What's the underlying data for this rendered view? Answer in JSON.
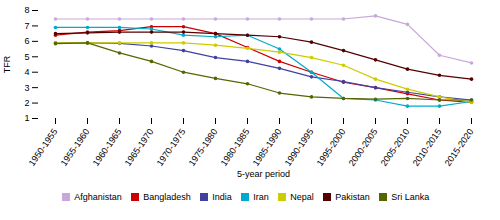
{
  "chart_data": {
    "type": "line",
    "xlabel": "5-year period",
    "ylabel": "TFR",
    "categories": [
      "1950-1955",
      "1955-1960",
      "1960-1965",
      "1965-1970",
      "1970-1975",
      "1975-1980",
      "1980-1985",
      "1985-1990",
      "1990-1995",
      "1995-2000",
      "2000-2005",
      "2005-2010",
      "2010-2015",
      "2015-2020"
    ],
    "series": [
      {
        "name": "Afghanistan",
        "color": "#c8a8d8",
        "values": [
          7.45,
          7.45,
          7.45,
          7.45,
          7.45,
          7.45,
          7.45,
          7.45,
          7.45,
          7.45,
          7.65,
          7.1,
          5.1,
          4.6
        ]
      },
      {
        "name": "Bangladesh",
        "color": "#cc0000",
        "values": [
          6.4,
          6.6,
          6.7,
          6.95,
          6.95,
          6.5,
          5.6,
          4.7,
          4.0,
          3.35,
          3.0,
          2.6,
          2.2,
          2.05
        ]
      },
      {
        "name": "India",
        "color": "#4040a0",
        "values": [
          5.9,
          5.9,
          5.87,
          5.7,
          5.4,
          4.95,
          4.7,
          4.25,
          3.7,
          3.4,
          3.0,
          2.7,
          2.4,
          2.2
        ]
      },
      {
        "name": "Iran",
        "color": "#00aacc",
        "values": [
          6.9,
          6.9,
          6.9,
          6.8,
          6.4,
          6.3,
          6.4,
          5.5,
          4.0,
          2.3,
          2.2,
          1.8,
          1.8,
          2.1
        ]
      },
      {
        "name": "Nepal",
        "color": "#cccc00",
        "values": [
          5.9,
          5.9,
          5.9,
          5.9,
          5.9,
          5.75,
          5.55,
          5.3,
          4.95,
          4.45,
          3.55,
          2.9,
          2.4,
          2.05
        ]
      },
      {
        "name": "Pakistan",
        "color": "#550000",
        "values": [
          6.5,
          6.55,
          6.6,
          6.6,
          6.6,
          6.5,
          6.4,
          6.3,
          5.95,
          5.4,
          4.8,
          4.2,
          3.8,
          3.55
        ]
      },
      {
        "name": "Sri Lanka",
        "color": "#556600",
        "values": [
          5.85,
          5.9,
          5.25,
          4.7,
          4.0,
          3.6,
          3.25,
          2.65,
          2.4,
          2.3,
          2.25,
          2.3,
          2.2,
          2.2
        ]
      }
    ],
    "ylim": [
      1,
      8
    ],
    "yticks": [
      1,
      2,
      3,
      4,
      5,
      6,
      7,
      8
    ],
    "marker": "circle",
    "grid": false,
    "legend": "bottom"
  }
}
